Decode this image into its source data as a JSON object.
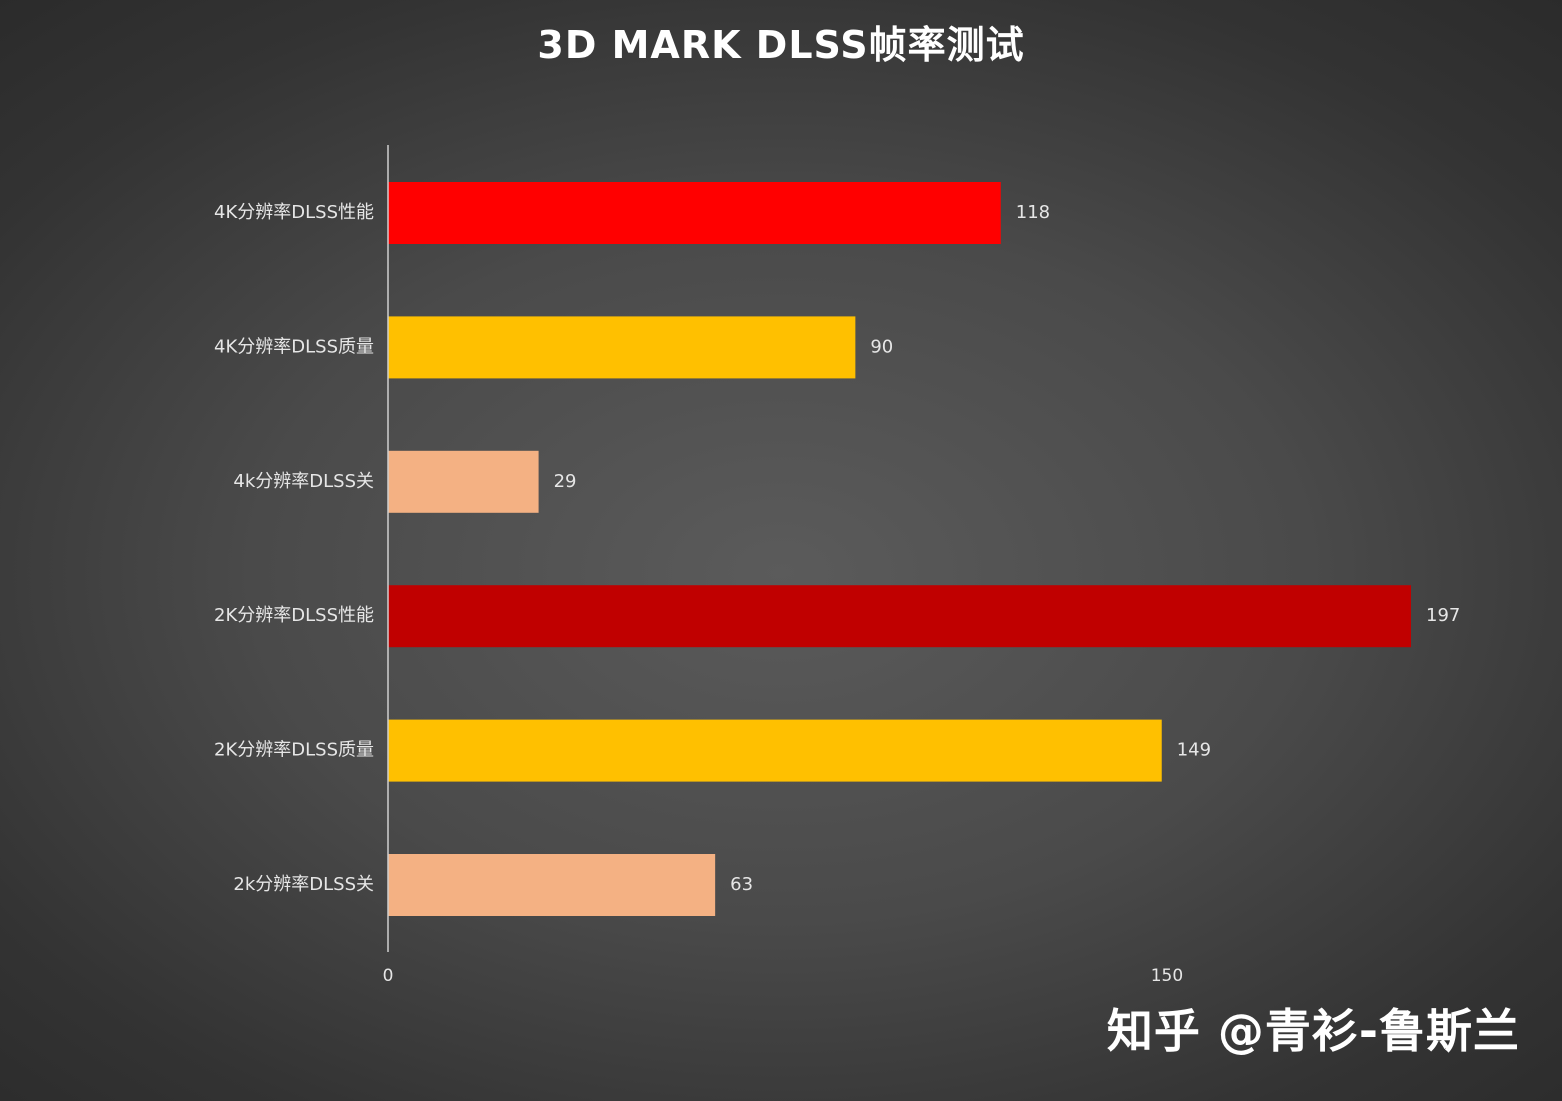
{
  "chart_data": {
    "type": "bar",
    "orientation": "horizontal",
    "title": "3D MARK DLSS帧率测试",
    "categories": [
      "4K分辨率DLSS性能",
      "4K分辨率DLSS质量",
      "4k分辨率DLSS关",
      "2K分辨率DLSS性能",
      "2K分辨率DLSS质量",
      "2k分辨率DLSS关"
    ],
    "values": [
      118,
      90,
      29,
      197,
      149,
      63
    ],
    "bar_colors": [
      "#ff0000",
      "#ffc000",
      "#f4b183",
      "#c00000",
      "#ffc000",
      "#f4b183"
    ],
    "xlim": [
      0,
      197
    ],
    "xticks": [
      0,
      150
    ],
    "grid": false,
    "legend": "none"
  },
  "watermark": "知乎 @青衫-鲁斯兰"
}
